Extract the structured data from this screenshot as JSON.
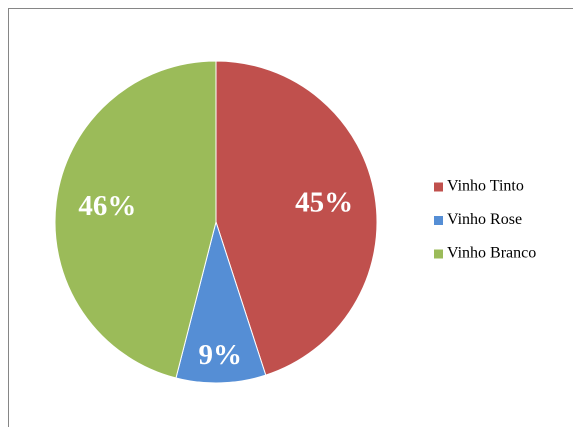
{
  "chart_data": {
    "type": "pie",
    "categories": [
      "Vinho Tinto",
      "Vinho Rose",
      "Vinho Branco"
    ],
    "values": [
      45,
      9,
      46
    ],
    "value_labels": [
      "45%",
      "9%",
      "46%"
    ],
    "colors": [
      "#c0504d",
      "#558ed5",
      "#9bbb59"
    ],
    "legend": "right"
  }
}
